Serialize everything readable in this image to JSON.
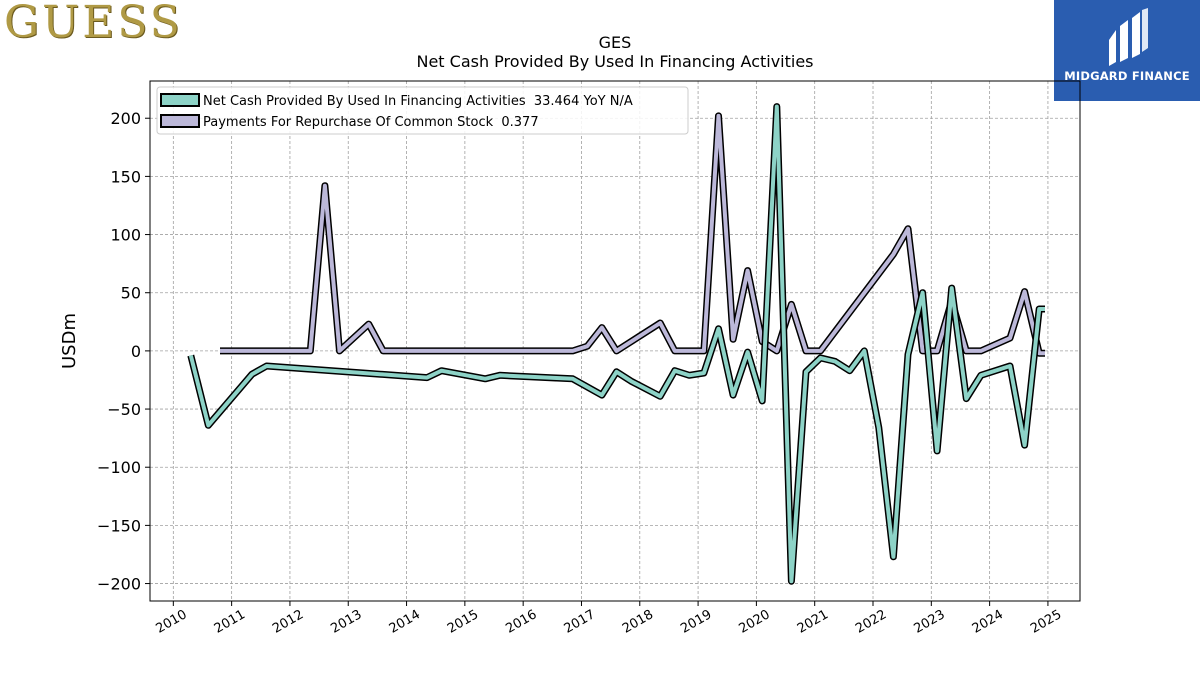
{
  "header": {
    "brand_logo_text": "GUESS",
    "partner_logo_name": "MIDGARD FINANCE",
    "title_line1": "GES",
    "title_line2": "Net Cash Provided By Used In Financing Activities"
  },
  "chart_data": {
    "type": "line",
    "title": "GES\nNet Cash Provided By Used In Financing Activities",
    "ylabel": "USDm",
    "xlabel": "",
    "xlim": [
      2009.6,
      2025.55
    ],
    "ylim": [
      -215,
      232
    ],
    "x_ticks": [
      "2010",
      "2011",
      "2012",
      "2013",
      "2014",
      "2015",
      "2016",
      "2017",
      "2018",
      "2019",
      "2020",
      "2021",
      "2022",
      "2023",
      "2024",
      "2025"
    ],
    "y_ticks": [
      -200,
      -150,
      -100,
      -50,
      0,
      50,
      100,
      150,
      200
    ],
    "y_tick_labels": [
      "−200",
      "−150",
      "−100",
      "−50",
      "0",
      "50",
      "100",
      "150",
      "200"
    ],
    "grid": true,
    "legend_placement": "top-left",
    "series": [
      {
        "name": "Net Cash Provided By Used In Financing Activities",
        "legend_label": "Net Cash Provided By Used In Financing Activities  33.464 YoY N/A",
        "color": "#8dd3c7",
        "points": [
          [
            2010.3,
            -4
          ],
          [
            2010.6,
            -64
          ],
          [
            2011.35,
            -20
          ],
          [
            2011.6,
            -13
          ],
          [
            2014.35,
            -23
          ],
          [
            2014.6,
            -17
          ],
          [
            2015.35,
            -24
          ],
          [
            2015.6,
            -21
          ],
          [
            2016.85,
            -24
          ],
          [
            2017.35,
            -38
          ],
          [
            2017.6,
            -18
          ],
          [
            2017.85,
            -26
          ],
          [
            2018.35,
            -39
          ],
          [
            2018.6,
            -17
          ],
          [
            2018.85,
            -21
          ],
          [
            2019.1,
            -19
          ],
          [
            2019.35,
            19
          ],
          [
            2019.6,
            -38
          ],
          [
            2019.85,
            -1
          ],
          [
            2020.1,
            -43
          ],
          [
            2020.35,
            210
          ],
          [
            2020.6,
            -198
          ],
          [
            2020.85,
            -18
          ],
          [
            2021.1,
            -6
          ],
          [
            2021.35,
            -9
          ],
          [
            2021.6,
            -17
          ],
          [
            2021.85,
            0
          ],
          [
            2022.1,
            -66
          ],
          [
            2022.35,
            -177
          ],
          [
            2022.6,
            -3
          ],
          [
            2022.85,
            50
          ],
          [
            2023.1,
            -86
          ],
          [
            2023.35,
            54
          ],
          [
            2023.6,
            -41
          ],
          [
            2023.85,
            -21
          ],
          [
            2024.35,
            -13
          ],
          [
            2024.6,
            -81
          ],
          [
            2024.85,
            36
          ],
          [
            2024.95,
            36
          ]
        ]
      },
      {
        "name": "Payments For Repurchase Of Common Stock",
        "legend_label": "Payments For Repurchase Of Common Stock  0.377",
        "color": "#bcb8d9",
        "points": [
          [
            2010.8,
            0
          ],
          [
            2012.35,
            0
          ],
          [
            2012.6,
            142
          ],
          [
            2012.85,
            0
          ],
          [
            2013.35,
            23
          ],
          [
            2013.6,
            0
          ],
          [
            2016.85,
            0
          ],
          [
            2017.1,
            4
          ],
          [
            2017.35,
            20
          ],
          [
            2017.6,
            0
          ],
          [
            2018.35,
            24
          ],
          [
            2018.6,
            0
          ],
          [
            2019.1,
            0
          ],
          [
            2019.35,
            202
          ],
          [
            2019.6,
            10
          ],
          [
            2019.85,
            69
          ],
          [
            2020.1,
            8
          ],
          [
            2020.35,
            0
          ],
          [
            2020.6,
            40
          ],
          [
            2020.85,
            0
          ],
          [
            2021.1,
            0
          ],
          [
            2022.35,
            83
          ],
          [
            2022.6,
            105
          ],
          [
            2022.85,
            0
          ],
          [
            2023.1,
            0
          ],
          [
            2023.35,
            43
          ],
          [
            2023.6,
            0
          ],
          [
            2023.85,
            0
          ],
          [
            2024.35,
            11
          ],
          [
            2024.6,
            51
          ],
          [
            2024.85,
            -2
          ],
          [
            2024.95,
            -2
          ]
        ]
      }
    ]
  }
}
